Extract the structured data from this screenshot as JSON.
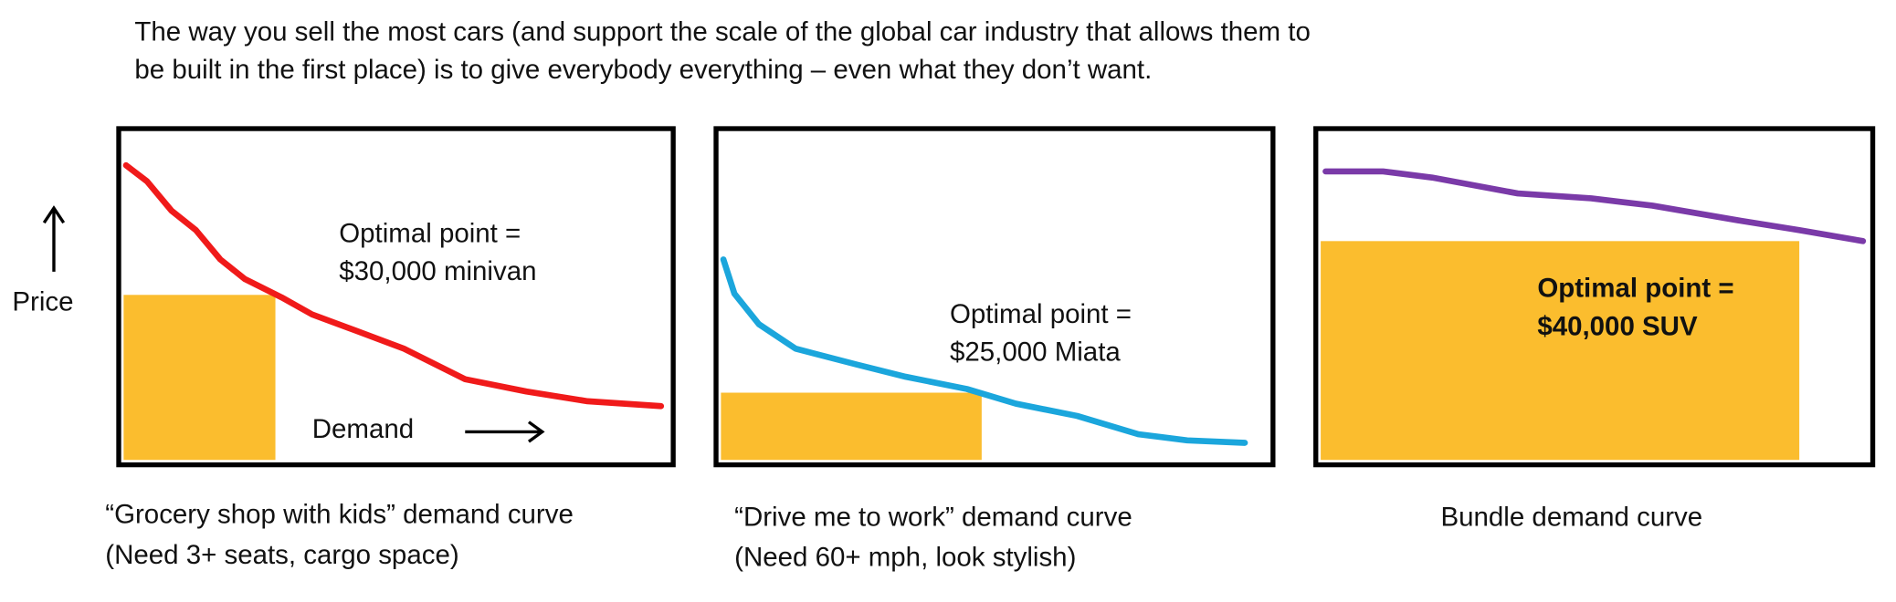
{
  "header": {
    "lines": [
      "The way you sell the most cars (and support the scale of the global car industry that allows them to",
      "be built in the first place) is to give everybody everything – even what they don’t want."
    ]
  },
  "y_axis_label": "Price",
  "x_axis_label": "Demand",
  "panels": [
    {
      "annotation": [
        "Optimal point =",
        "$30,000 minivan"
      ],
      "caption": [
        "“Grocery shop with kids” demand curve",
        "(Need 3+ seats, cargo space)"
      ]
    },
    {
      "annotation": [
        "Optimal point =",
        "$25,000 Miata"
      ],
      "caption": [
        "“Drive me to work” demand curve",
        "(Need 60+ mph, look stylish)"
      ]
    },
    {
      "annotation": [
        "Optimal point =",
        "$40,000 SUV"
      ],
      "caption": [
        "Bundle demand curve"
      ]
    }
  ]
}
